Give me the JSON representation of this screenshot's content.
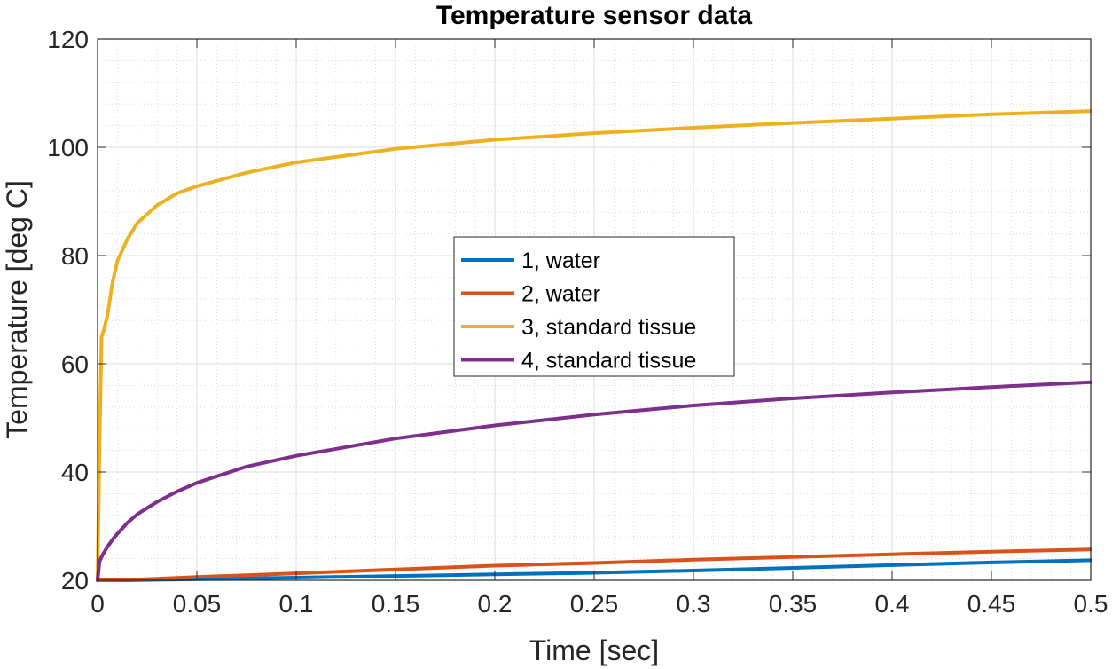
{
  "chart_data": {
    "type": "line",
    "title": "Temperature sensor data",
    "xlabel": "Time [sec]",
    "ylabel": "Temperature [deg C]",
    "xlim": [
      0,
      0.5
    ],
    "ylim": [
      20,
      120
    ],
    "xticks": [
      0,
      0.05,
      0.1,
      0.15,
      0.2,
      0.25,
      0.3,
      0.35,
      0.4,
      0.45,
      0.5
    ],
    "xtick_labels": [
      "0",
      "0.05",
      "0.1",
      "0.15",
      "0.2",
      "0.25",
      "0.3",
      "0.35",
      "0.4",
      "0.45",
      "0.5"
    ],
    "yticks": [
      20,
      40,
      60,
      80,
      100,
      120
    ],
    "ytick_labels": [
      "20",
      "40",
      "60",
      "80",
      "100",
      "120"
    ],
    "grid": true,
    "minor_grid": true,
    "legend_position": "center",
    "x": [
      0,
      0.001,
      0.002,
      0.003,
      0.005,
      0.0075,
      0.01,
      0.015,
      0.02,
      0.03,
      0.04,
      0.05,
      0.075,
      0.1,
      0.15,
      0.2,
      0.25,
      0.3,
      0.35,
      0.4,
      0.45,
      0.5
    ],
    "series": [
      {
        "name": "1, water",
        "color": "#0072BD",
        "values": [
          20,
          20,
          20,
          20,
          20,
          20,
          20,
          20,
          20.05,
          20.1,
          20.15,
          20.2,
          20.35,
          20.5,
          20.8,
          21.1,
          21.4,
          21.8,
          22.3,
          22.8,
          23.3,
          23.7
        ]
      },
      {
        "name": "2, water",
        "color": "#D95319",
        "values": [
          20,
          20,
          20,
          20,
          20,
          20,
          20.05,
          20.1,
          20.15,
          20.3,
          20.45,
          20.6,
          20.95,
          21.3,
          22.0,
          22.7,
          23.2,
          23.8,
          24.3,
          24.8,
          25.3,
          25.7
        ]
      },
      {
        "name": "3, standard tissue",
        "color": "#EDB120",
        "values": [
          20,
          45,
          65,
          66,
          69,
          75,
          79,
          83,
          86,
          89.3,
          91.5,
          92.8,
          95.3,
          97.2,
          99.7,
          101.4,
          102.6,
          103.6,
          104.5,
          105.3,
          106.1,
          106.7
        ]
      },
      {
        "name": "4, standard tissue",
        "color": "#7E2F8E",
        "values": [
          20,
          23.5,
          24.3,
          25.0,
          26.2,
          27.5,
          28.6,
          30.6,
          32.2,
          34.5,
          36.4,
          38.0,
          41.0,
          43.0,
          46.2,
          48.6,
          50.6,
          52.3,
          53.6,
          54.7,
          55.7,
          56.6
        ]
      }
    ]
  }
}
